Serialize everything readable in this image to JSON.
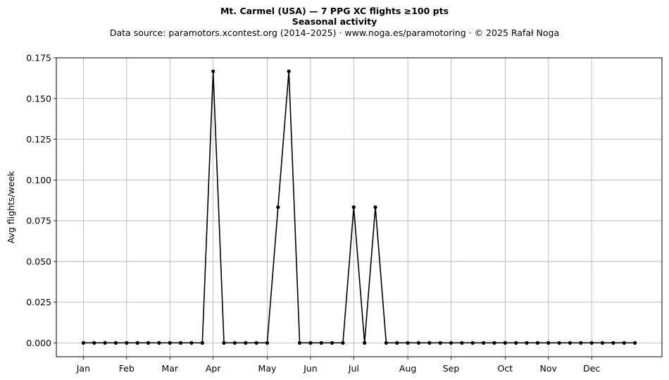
{
  "title_line1": "Mt. Carmel (USA)  —  7 PPG XC flights ≥100 pts",
  "title_line2": "Seasonal activity",
  "subtitle": "Data source: paramotors.xcontest.org (2014–2025)  ·  www.noga.es/paramotoring  ·  © 2025 Rafał Noga",
  "chart_data": {
    "type": "line",
    "ylabel": "Avg flights/week",
    "xlabel": "",
    "ylim": [
      -0.0085,
      0.175
    ],
    "xlim": [
      -2.5,
      53.5
    ],
    "grid": true,
    "yticks": [
      0.0,
      0.025,
      0.05,
      0.075,
      0.1,
      0.125,
      0.15,
      0.175
    ],
    "ytick_labels": [
      "0.000",
      "0.025",
      "0.050",
      "0.075",
      "0.100",
      "0.125",
      "0.150",
      "0.175"
    ],
    "xticks": [
      {
        "label": "Jan",
        "week": 0
      },
      {
        "label": "Feb",
        "week": 4
      },
      {
        "label": "Mar",
        "week": 8
      },
      {
        "label": "Apr",
        "week": 12
      },
      {
        "label": "May",
        "week": 17
      },
      {
        "label": "Jun",
        "week": 21
      },
      {
        "label": "Jul",
        "week": 25
      },
      {
        "label": "Aug",
        "week": 30
      },
      {
        "label": "Sep",
        "week": 34
      },
      {
        "label": "Oct",
        "week": 39
      },
      {
        "label": "Nov",
        "week": 43
      },
      {
        "label": "Dec",
        "week": 47
      }
    ],
    "series": [
      {
        "color": "#000000",
        "x": [
          0,
          1,
          2,
          3,
          4,
          5,
          6,
          7,
          8,
          9,
          10,
          11,
          12,
          13,
          14,
          15,
          16,
          17,
          18,
          19,
          20,
          21,
          22,
          23,
          24,
          25,
          26,
          27,
          28,
          29,
          30,
          31,
          32,
          33,
          34,
          35,
          36,
          37,
          38,
          39,
          40,
          41,
          42,
          43,
          44,
          45,
          46,
          47,
          48,
          49,
          50,
          51
        ],
        "values": [
          0,
          0,
          0,
          0,
          0,
          0,
          0,
          0,
          0,
          0,
          0,
          0,
          0.1667,
          0,
          0,
          0,
          0,
          0,
          0.0833,
          0.1667,
          0,
          0,
          0,
          0,
          0,
          0.0833,
          0,
          0.0833,
          0,
          0,
          0,
          0,
          0,
          0,
          0,
          0,
          0,
          0,
          0,
          0,
          0,
          0,
          0,
          0,
          0,
          0,
          0,
          0,
          0,
          0,
          0,
          0
        ]
      }
    ]
  }
}
